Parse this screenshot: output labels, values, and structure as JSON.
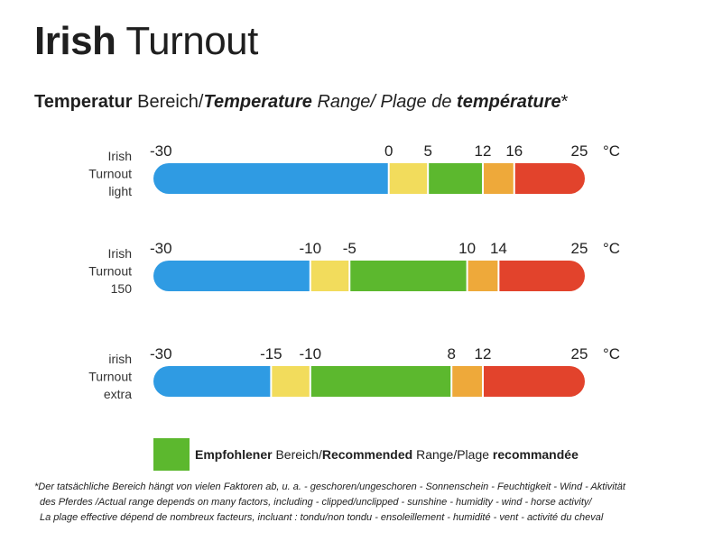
{
  "title": {
    "bold": "Irish",
    "regular": "Turnout"
  },
  "subtitle": {
    "de_bold": "Temperatur",
    "de_rest": "Bereich/",
    "en_bold": "Temperature",
    "en_rest": "Range/ Plage de",
    "fr_bold": "température",
    "asterisk": "*"
  },
  "colors": {
    "blue": "#2f9be3",
    "yellow": "#f2dc5c",
    "green": "#5cb82e",
    "orange": "#eea93a",
    "red": "#e2432c"
  },
  "chart_data": {
    "type": "bar",
    "unit": "°C",
    "xlim": [
      -30,
      25
    ],
    "bars": [
      {
        "label_lines": [
          "Irish",
          "Turnout",
          "light"
        ],
        "ticks": [
          "-30",
          "0",
          "5",
          "12",
          "16",
          "25"
        ],
        "segments": [
          {
            "from": -30,
            "to": 0,
            "color": "blue"
          },
          {
            "from": 0,
            "to": 5,
            "color": "yellow"
          },
          {
            "from": 5,
            "to": 12,
            "color": "green"
          },
          {
            "from": 12,
            "to": 16,
            "color": "orange"
          },
          {
            "from": 16,
            "to": 25,
            "color": "red"
          }
        ]
      },
      {
        "label_lines": [
          "Irish",
          "Turnout",
          "150"
        ],
        "ticks": [
          "-30",
          "-10",
          "-5",
          "10",
          "14",
          "25"
        ],
        "segments": [
          {
            "from": -30,
            "to": -10,
            "color": "blue"
          },
          {
            "from": -10,
            "to": -5,
            "color": "yellow"
          },
          {
            "from": -5,
            "to": 10,
            "color": "green"
          },
          {
            "from": 10,
            "to": 14,
            "color": "orange"
          },
          {
            "from": 14,
            "to": 25,
            "color": "red"
          }
        ]
      },
      {
        "label_lines": [
          "irish",
          "Turnout",
          "extra"
        ],
        "ticks": [
          "-30",
          "-15",
          "-10",
          "8",
          "12",
          "25"
        ],
        "segments": [
          {
            "from": -30,
            "to": -15,
            "color": "blue"
          },
          {
            "from": -15,
            "to": -10,
            "color": "yellow"
          },
          {
            "from": -10,
            "to": 8,
            "color": "green"
          },
          {
            "from": 8,
            "to": 12,
            "color": "orange"
          },
          {
            "from": 12,
            "to": 25,
            "color": "red"
          }
        ]
      }
    ]
  },
  "legend": {
    "de_bold": "Empfohlener",
    "de_rest": "Bereich/",
    "en_bold": "Recommended",
    "en_rest": "Range/Plage",
    "fr_bold": "recommandée"
  },
  "footnote": {
    "line1": "*Der tatsächliche Bereich hängt von vielen Faktoren ab, u. a. - geschoren/ungeschoren - Sonnenschein - Feuchtigkeit - Wind - Aktivität",
    "line2": "des Pferdes /Actual range depends on many factors, including - clipped/unclipped - sunshine - humidity - wind - horse activity/",
    "line3": "La plage effective dépend de nombreux facteurs, incluant :  tondu/non tondu - ensoleillement - humidité - vent - activité du cheval"
  }
}
